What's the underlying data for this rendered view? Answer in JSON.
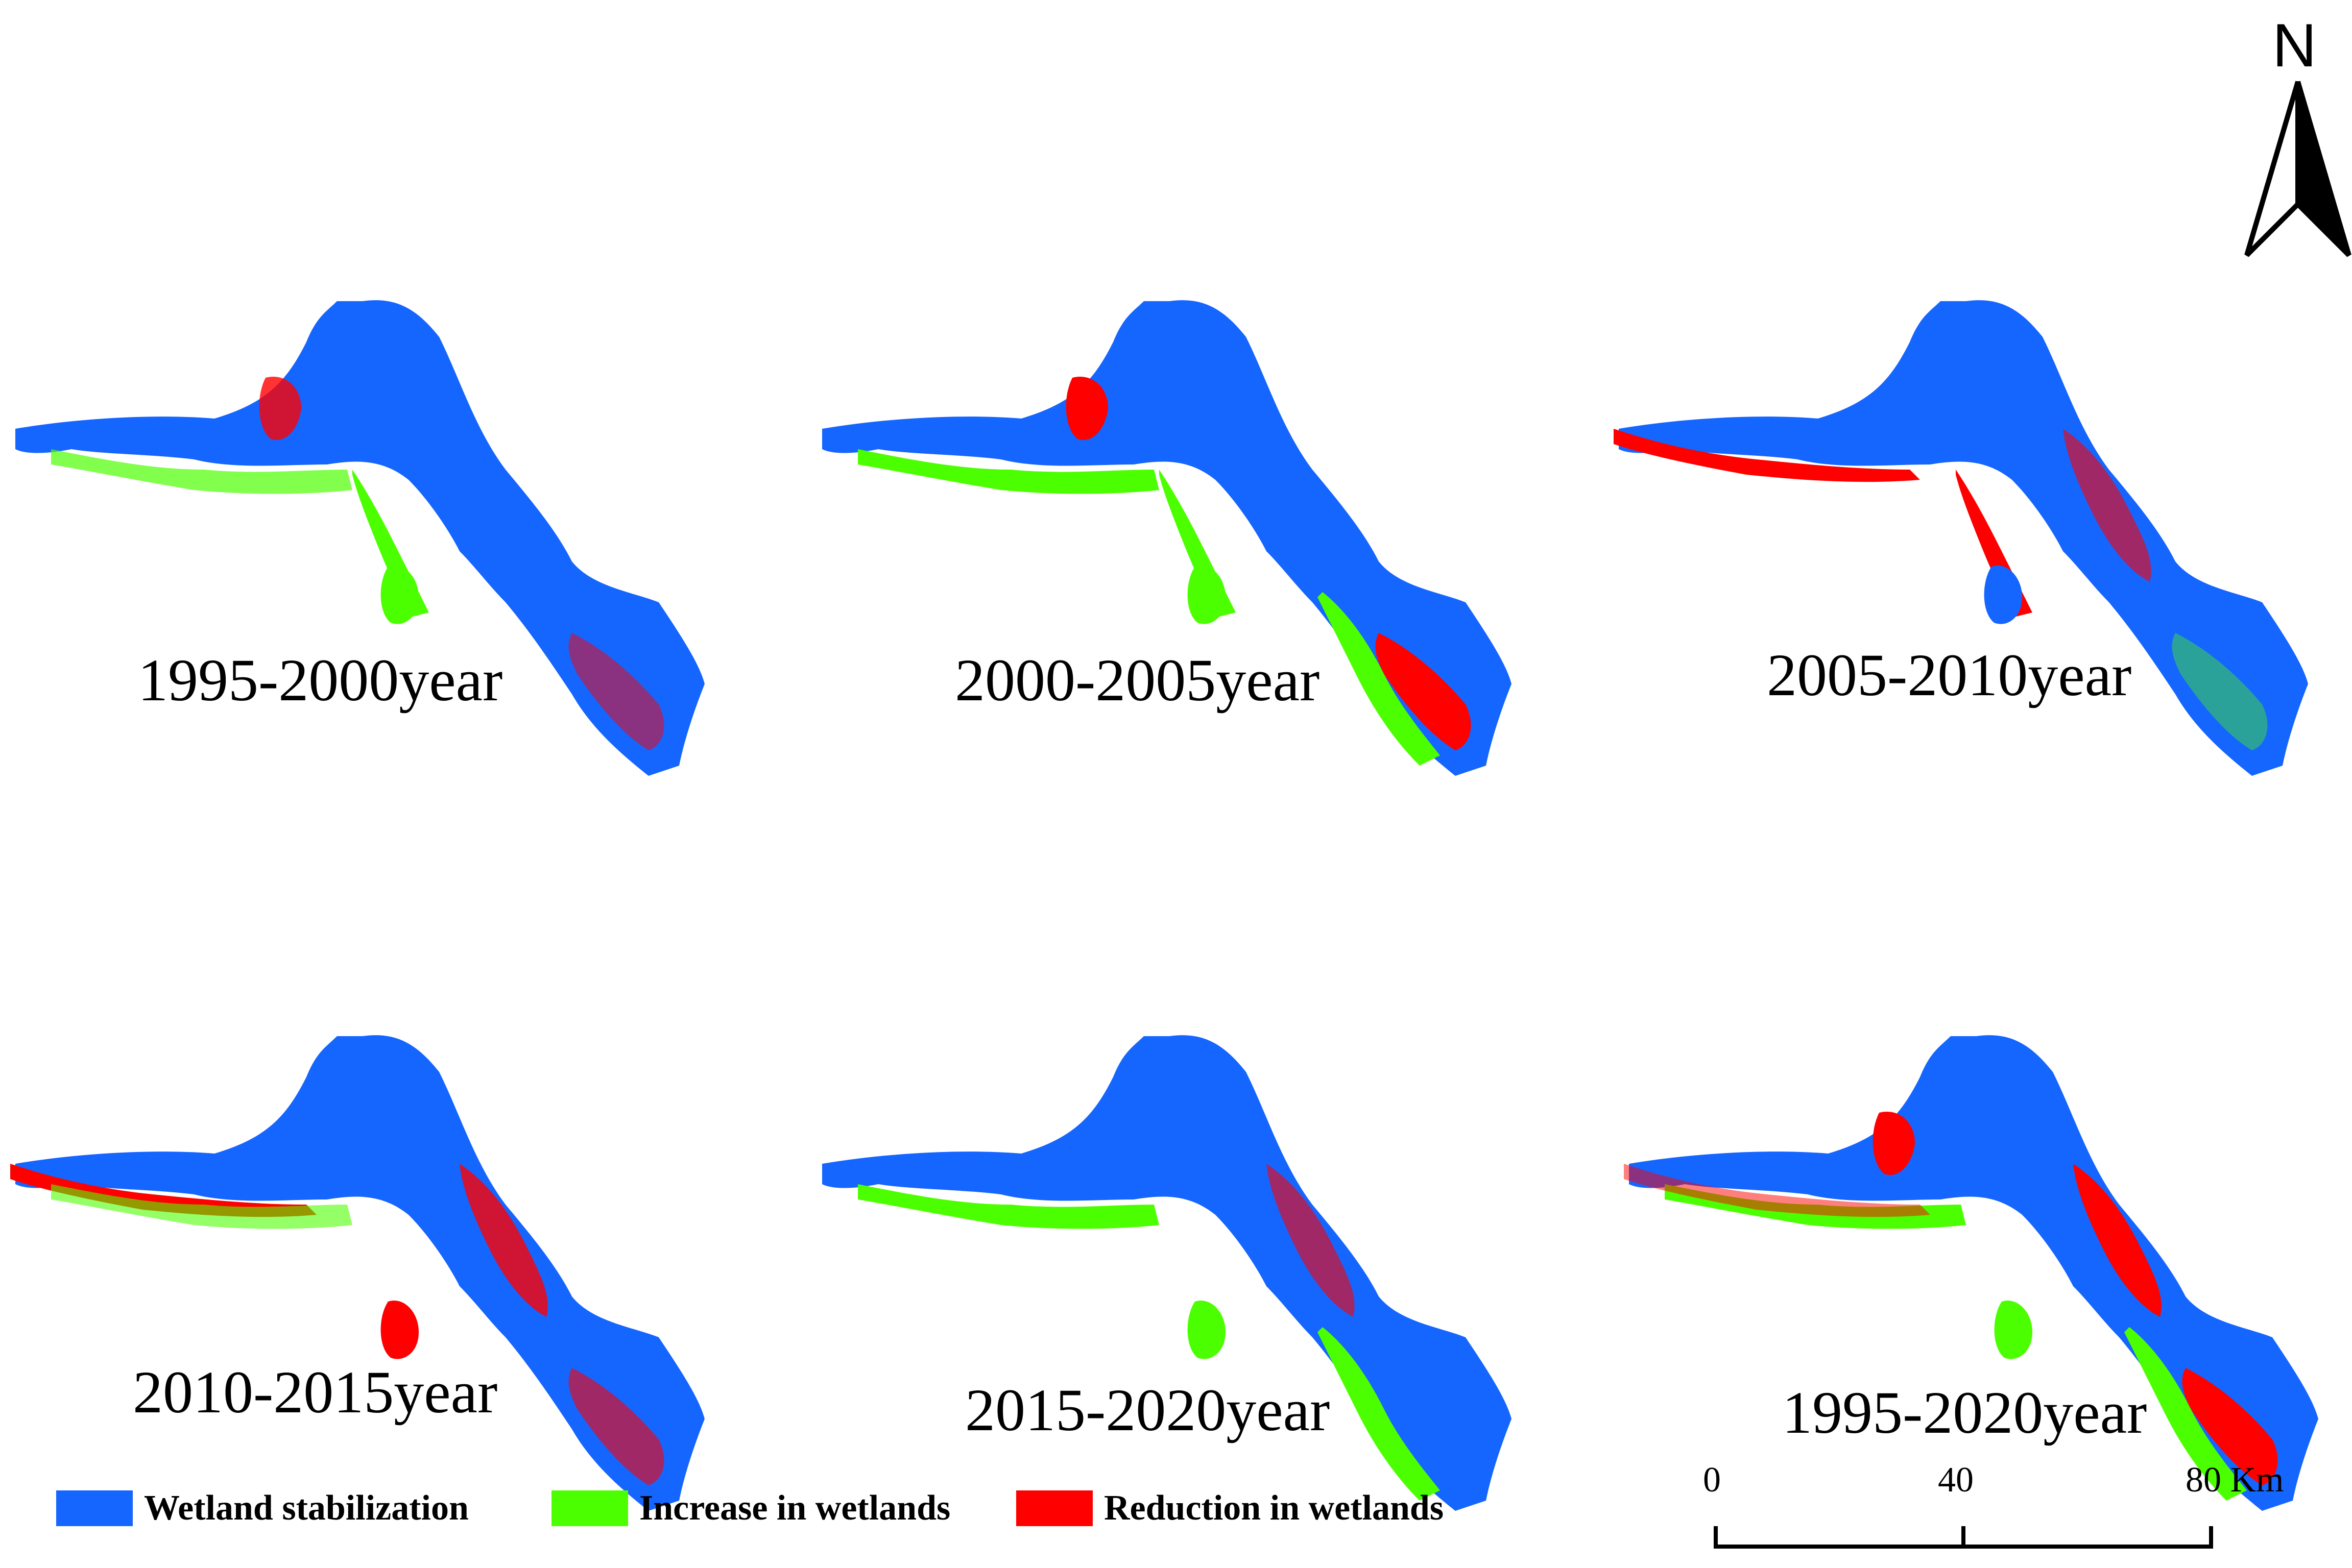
{
  "colors": {
    "stable": "#1565ff",
    "increase": "#4cff00",
    "reduction": "#ff0000"
  },
  "panels": [
    {
      "title": "1995-2000year",
      "increase_level": "moderate",
      "reduction_level": "low"
    },
    {
      "title": "2000-2005year",
      "increase_level": "high",
      "reduction_level": "moderate"
    },
    {
      "title": "2005-2010year",
      "increase_level": "low",
      "reduction_level": "high"
    },
    {
      "title": "2010-2015year",
      "increase_level": "moderate",
      "reduction_level": "high"
    },
    {
      "title": "2015-2020year",
      "increase_level": "high",
      "reduction_level": "moderate"
    },
    {
      "title": "1995-2020year",
      "increase_level": "moderate",
      "reduction_level": "high"
    }
  ],
  "legend": {
    "stable": "Wetland stabilization",
    "increase": "Increase in wetlands",
    "reduction": "Reduction in wetlands"
  },
  "scale_bar": {
    "tick_0": "0",
    "tick_1": "40",
    "tick_2": "80 Km"
  },
  "north_arrow": {
    "label": "N",
    "icon": "north-arrow-icon"
  }
}
